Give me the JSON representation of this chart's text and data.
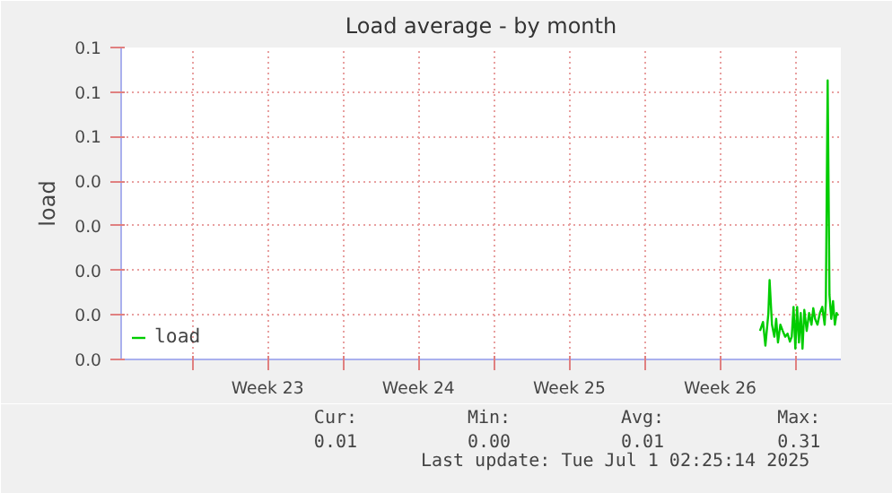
{
  "chart_data": {
    "type": "line",
    "title": "Load average - by month",
    "ylabel": "load",
    "x": [
      "2025-06-27T08:24",
      "2025-06-27T11:44",
      "2025-06-27T14:24",
      "2025-06-27T17:44",
      "2025-06-27T19:04",
      "2025-06-27T21:44",
      "2025-06-28T00:24",
      "2025-06-28T02:24",
      "2025-06-28T04:24",
      "2025-06-28T07:04",
      "2025-06-28T09:44",
      "2025-06-28T12:24",
      "2025-06-28T15:04",
      "2025-06-28T17:44",
      "2025-06-28T19:44",
      "2025-06-28T21:44",
      "2025-06-28T23:44",
      "2025-06-29T01:44",
      "2025-06-29T03:44",
      "2025-06-29T05:44",
      "2025-06-29T07:44",
      "2025-06-29T09:44",
      "2025-06-29T12:24",
      "2025-06-29T15:04",
      "2025-06-29T17:44",
      "2025-06-29T19:44",
      "2025-06-29T21:44",
      "2025-06-30T00:24",
      "2025-06-30T03:04",
      "2025-06-30T05:44",
      "2025-06-30T08:24",
      "2025-06-30T09:44",
      "2025-06-30T11:44",
      "2025-06-30T13:44",
      "2025-06-30T15:44",
      "2025-06-30T17:44",
      "2025-06-30T19:44",
      "2025-06-30T21:44",
      "2025-06-30T23:04"
    ],
    "series": [
      {
        "name": "load",
        "color": "#00cc00",
        "values": [
          0.0064,
          0.0084,
          0.0031,
          0.0104,
          0.0178,
          0.0078,
          0.0051,
          0.0091,
          0.0038,
          0.0078,
          0.0064,
          0.0051,
          0.0058,
          0.004,
          0.0051,
          0.0118,
          0.0024,
          0.0118,
          0.0038,
          0.0104,
          0.0024,
          0.0111,
          0.0064,
          0.0104,
          0.0078,
          0.0115,
          0.0091,
          0.0078,
          0.0104,
          0.0118,
          0.0078,
          0.0131,
          0.0626,
          0.0145,
          0.0091,
          0.0131,
          0.0078,
          0.0104,
          0.0098
        ]
      }
    ],
    "xlim": [
      "2025-05-28T17:00",
      "2025-07-01T02:25"
    ],
    "xticks": [
      {
        "value": "2025-06-01",
        "label": null
      },
      {
        "value": "2025-06-04T12:00",
        "label": "Week 23"
      },
      {
        "value": "2025-06-08",
        "label": null
      },
      {
        "value": "2025-06-11T12:00",
        "label": "Week 24"
      },
      {
        "value": "2025-06-15",
        "label": null
      },
      {
        "value": "2025-06-18T12:00",
        "label": "Week 25"
      },
      {
        "value": "2025-06-22",
        "label": null
      },
      {
        "value": "2025-06-25T12:00",
        "label": "Week 26"
      },
      {
        "value": "2025-06-29",
        "label": null
      }
    ],
    "ylim": [
      0,
      0.07
    ],
    "yticks": [
      {
        "value": 0,
        "label": "0.0"
      },
      {
        "value": 0.01,
        "label": "0.0"
      },
      {
        "value": 0.02,
        "label": "0.0"
      },
      {
        "value": 0.03,
        "label": "0.0"
      },
      {
        "value": 0.04,
        "label": "0.0"
      },
      {
        "value": 0.05,
        "label": "0.1"
      },
      {
        "value": 0.06,
        "label": "0.1"
      },
      {
        "value": 0.07,
        "label": "0.1"
      }
    ],
    "grid": true,
    "legend": "bottom left",
    "annotations": [
      "Cur:",
      "Min:",
      "Avg:",
      "Max:",
      "0.01",
      "0.00",
      "0.01",
      "0.31",
      "Last update: Tue Jul  1 02:25:14 2025"
    ]
  }
}
